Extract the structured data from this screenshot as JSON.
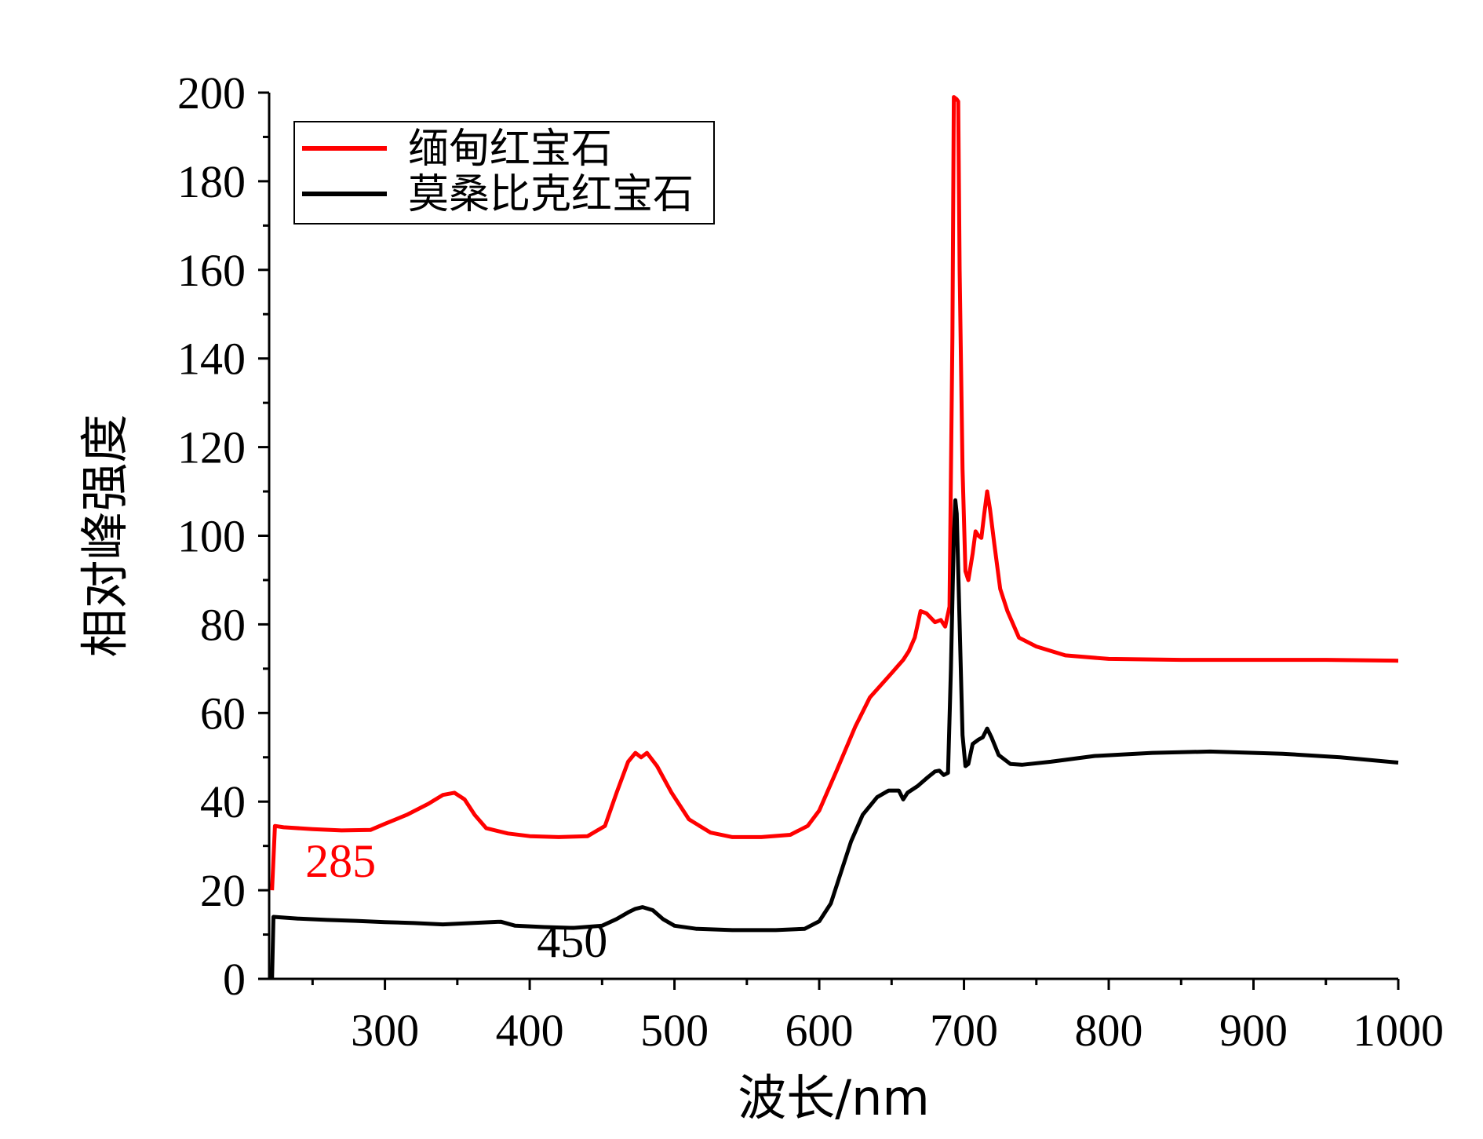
{
  "chart_data": {
    "type": "line",
    "title": "",
    "xlabel": "波长/nm",
    "ylabel": "相对峰强度",
    "xlim": [
      220,
      1000
    ],
    "ylim": [
      0,
      200
    ],
    "x_ticks": [
      300,
      400,
      500,
      600,
      700,
      800,
      900,
      1000
    ],
    "x_tick_labels": [
      "300",
      "400",
      "500",
      "600",
      "700",
      "800",
      "900",
      "1000"
    ],
    "y_ticks": [
      0,
      20,
      40,
      60,
      80,
      100,
      120,
      140,
      160,
      180,
      200
    ],
    "y_tick_labels": [
      "0",
      "20",
      "40",
      "60",
      "80",
      "100",
      "120",
      "140",
      "160",
      "180",
      "200"
    ],
    "grid": false,
    "legend_position": "top-left",
    "series": [
      {
        "name": "缅甸红宝石",
        "color": "#ff0000",
        "points": [
          [
            222,
            20
          ],
          [
            224,
            34.5
          ],
          [
            230,
            34.2
          ],
          [
            250,
            33.8
          ],
          [
            270,
            33.5
          ],
          [
            290,
            33.6
          ],
          [
            300,
            35
          ],
          [
            315,
            37
          ],
          [
            330,
            39.5
          ],
          [
            340,
            41.5
          ],
          [
            348,
            42
          ],
          [
            355,
            40.5
          ],
          [
            362,
            37
          ],
          [
            370,
            34
          ],
          [
            385,
            32.8
          ],
          [
            400,
            32.2
          ],
          [
            420,
            32
          ],
          [
            440,
            32.2
          ],
          [
            452,
            34.5
          ],
          [
            460,
            42
          ],
          [
            468,
            49
          ],
          [
            473,
            51
          ],
          [
            477,
            50
          ],
          [
            481,
            51
          ],
          [
            488,
            48
          ],
          [
            498,
            42
          ],
          [
            510,
            36
          ],
          [
            525,
            33
          ],
          [
            540,
            32
          ],
          [
            560,
            32
          ],
          [
            580,
            32.5
          ],
          [
            592,
            34.5
          ],
          [
            600,
            38
          ],
          [
            612,
            47
          ],
          [
            625,
            57
          ],
          [
            635,
            63.5
          ],
          [
            650,
            69
          ],
          [
            658,
            72
          ],
          [
            662,
            74
          ],
          [
            666,
            77
          ],
          [
            670,
            83
          ],
          [
            674,
            82.5
          ],
          [
            680,
            80.5
          ],
          [
            684,
            81
          ],
          [
            687,
            79.5
          ],
          [
            690,
            84
          ],
          [
            692,
            145
          ],
          [
            693,
            199
          ],
          [
            695,
            198.5
          ],
          [
            696,
            198
          ],
          [
            697,
            160
          ],
          [
            699,
            115
          ],
          [
            701,
            92
          ],
          [
            703,
            90
          ],
          [
            706,
            96
          ],
          [
            708,
            101
          ],
          [
            710,
            100
          ],
          [
            712,
            99.5
          ],
          [
            714,
            105
          ],
          [
            716,
            110
          ],
          [
            718,
            106
          ],
          [
            721,
            98
          ],
          [
            725,
            88
          ],
          [
            730,
            83
          ],
          [
            738,
            77
          ],
          [
            750,
            75
          ],
          [
            770,
            73
          ],
          [
            800,
            72.2
          ],
          [
            850,
            72
          ],
          [
            900,
            72
          ],
          [
            950,
            72
          ],
          [
            1000,
            71.8
          ]
        ]
      },
      {
        "name": "莫桑比克红宝石",
        "color": "#000000",
        "points": [
          [
            222,
            0
          ],
          [
            223,
            14
          ],
          [
            240,
            13.6
          ],
          [
            260,
            13.3
          ],
          [
            280,
            13.1
          ],
          [
            300,
            12.8
          ],
          [
            320,
            12.6
          ],
          [
            340,
            12.3
          ],
          [
            360,
            12.6
          ],
          [
            380,
            12.9
          ],
          [
            390,
            12
          ],
          [
            410,
            11.7
          ],
          [
            430,
            11.5
          ],
          [
            450,
            12
          ],
          [
            460,
            13.5
          ],
          [
            468,
            15
          ],
          [
            473,
            15.8
          ],
          [
            478,
            16.2
          ],
          [
            485,
            15.5
          ],
          [
            492,
            13.5
          ],
          [
            500,
            12
          ],
          [
            515,
            11.3
          ],
          [
            540,
            11
          ],
          [
            570,
            11
          ],
          [
            590,
            11.3
          ],
          [
            600,
            13
          ],
          [
            608,
            17
          ],
          [
            615,
            24
          ],
          [
            622,
            31
          ],
          [
            630,
            37
          ],
          [
            640,
            41
          ],
          [
            648,
            42.5
          ],
          [
            655,
            42.5
          ],
          [
            658,
            40.5
          ],
          [
            661,
            42
          ],
          [
            668,
            43.5
          ],
          [
            675,
            45.5
          ],
          [
            680,
            46.8
          ],
          [
            683,
            47
          ],
          [
            686,
            46
          ],
          [
            689,
            46.5
          ],
          [
            691,
            70
          ],
          [
            693,
            100
          ],
          [
            694,
            108
          ],
          [
            695,
            105
          ],
          [
            697,
            80
          ],
          [
            699,
            55
          ],
          [
            701,
            48
          ],
          [
            703,
            48.5
          ],
          [
            706,
            53
          ],
          [
            710,
            54
          ],
          [
            713,
            54.5
          ],
          [
            716,
            56.5
          ],
          [
            719,
            54.5
          ],
          [
            724,
            50.5
          ],
          [
            732,
            48.5
          ],
          [
            740,
            48.3
          ],
          [
            760,
            49
          ],
          [
            790,
            50.3
          ],
          [
            830,
            51
          ],
          [
            870,
            51.3
          ],
          [
            920,
            50.8
          ],
          [
            960,
            50
          ],
          [
            1000,
            48.8
          ]
        ]
      }
    ],
    "annotations": [
      {
        "text": "285",
        "x": 245,
        "y": 23,
        "color": "#ff0000"
      },
      {
        "text": "450",
        "x": 405,
        "y": 5,
        "color": "#000000"
      }
    ]
  }
}
